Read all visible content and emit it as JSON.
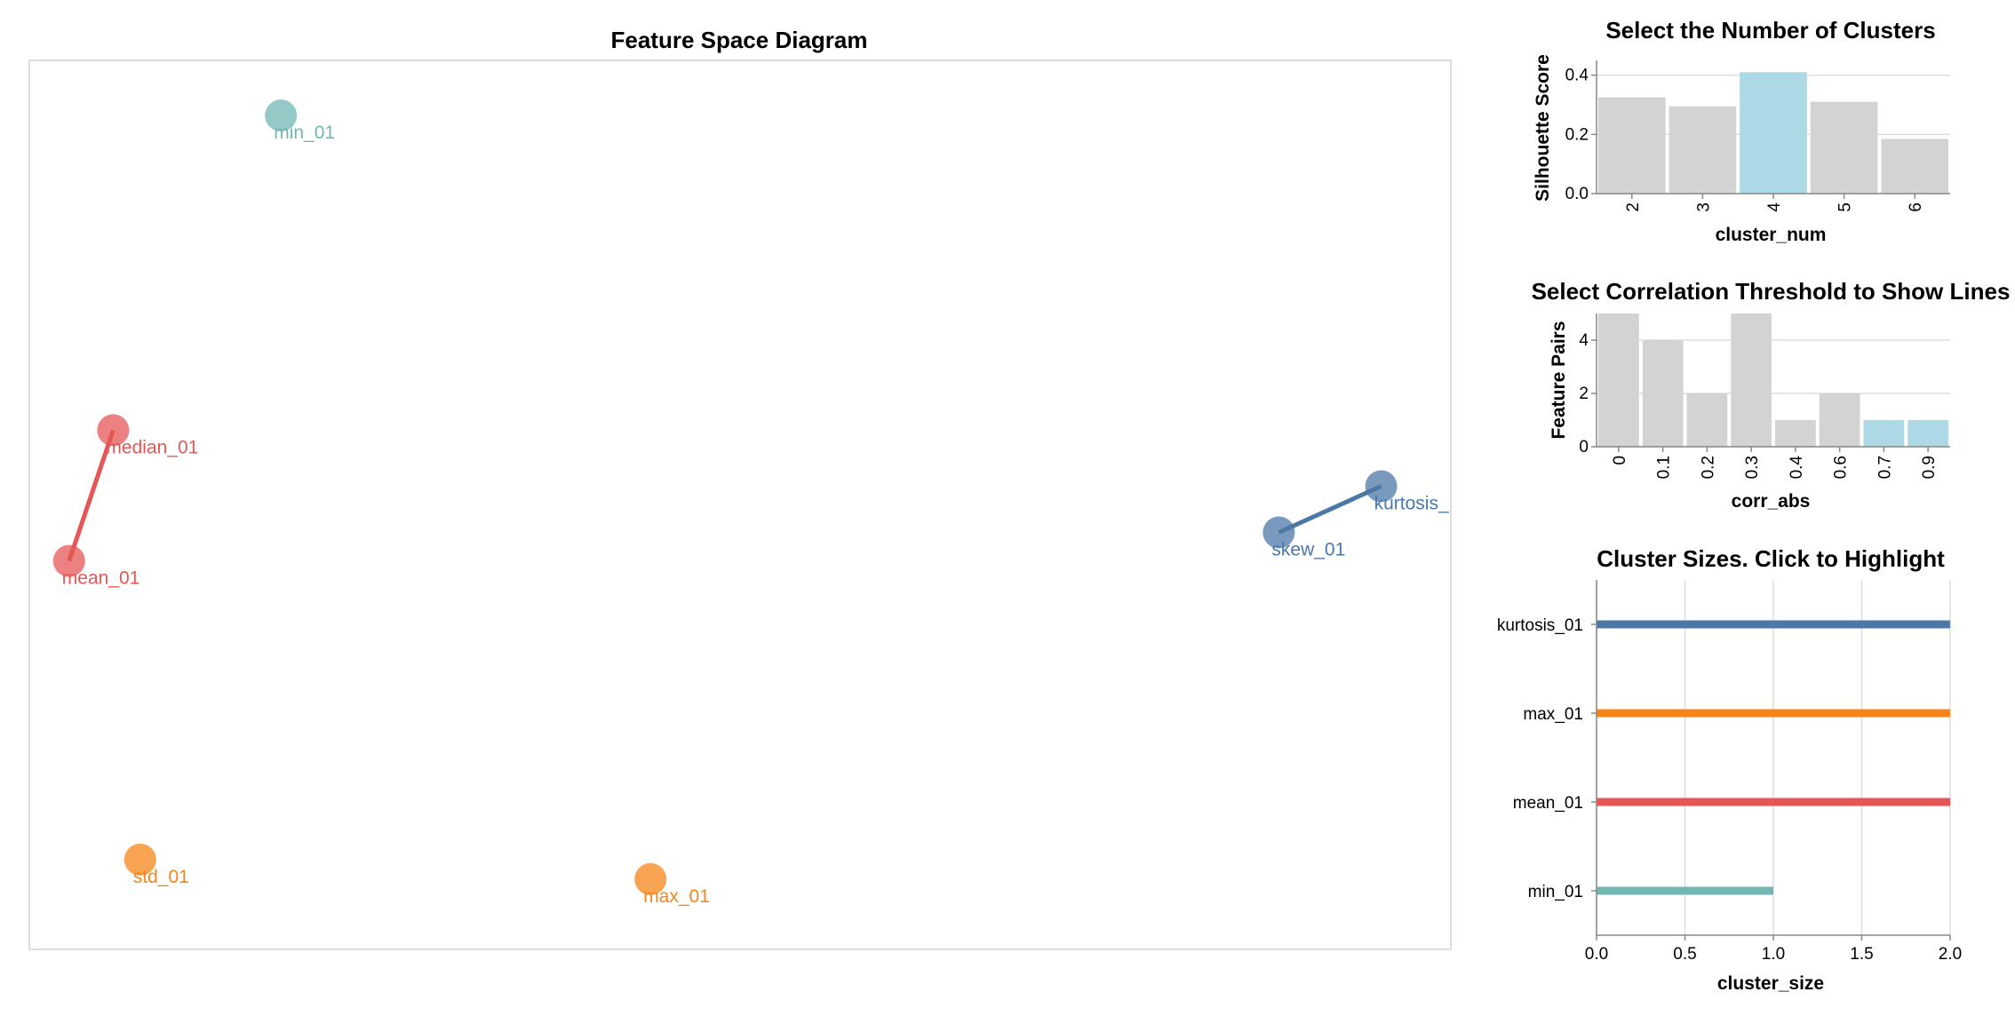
{
  "chart_data": [
    {
      "type": "scatter",
      "title": "Feature Space Diagram",
      "colors": {
        "kurtosis_01": "#4c78a8",
        "skew_01": "#4c78a8",
        "median_01": "#e45756",
        "mean_01": "#e45756",
        "min_01": "#72b7b2",
        "std_01": "#f58518",
        "max_01": "#f58518"
      },
      "nodes": [
        {
          "label": "min_01",
          "x": 0.177,
          "y": 0.938
        },
        {
          "label": "median_01",
          "x": 0.059,
          "y": 0.584
        },
        {
          "label": "mean_01",
          "x": 0.028,
          "y": 0.437
        },
        {
          "label": "kurtosis_",
          "x": 0.951,
          "y": 0.521
        },
        {
          "label": "skew_01",
          "x": 0.879,
          "y": 0.469
        },
        {
          "label": "std_01",
          "x": 0.078,
          "y": 0.101
        },
        {
          "label": "max_01",
          "x": 0.437,
          "y": 0.079
        }
      ],
      "links": [
        {
          "source": "median_01",
          "target": "mean_01",
          "color": "#e45756"
        },
        {
          "source": "kurtosis_",
          "target": "skew_01",
          "color": "#4c78a8"
        }
      ]
    },
    {
      "type": "bar",
      "title": "Select the Number of Clusters",
      "xlabel": "cluster_num",
      "ylabel": "Silhouette Score",
      "categories": [
        "2",
        "3",
        "4",
        "5",
        "6"
      ],
      "values": [
        0.325,
        0.295,
        0.41,
        0.31,
        0.185
      ],
      "selected": [
        "4"
      ],
      "yticks": [
        "0.0",
        "0.2",
        "0.4"
      ],
      "ylim": [
        0,
        0.45
      ],
      "bar_color": "#d3d3d3",
      "selected_color": "#add8e6"
    },
    {
      "type": "bar",
      "title": "Select Correlation Threshold to Show Lines",
      "xlabel": "corr_abs",
      "ylabel": "Feature Pairs",
      "categories": [
        "0",
        "0.1",
        "0.2",
        "0.3",
        "0.4",
        "0.6",
        "0.7",
        "0.9"
      ],
      "values": [
        5,
        4,
        2,
        5,
        1,
        2,
        1,
        1
      ],
      "selected": [
        "0.7",
        "0.9"
      ],
      "yticks": [
        "0",
        "2",
        "4"
      ],
      "ylim": [
        0,
        5
      ],
      "bar_color": "#d3d3d3",
      "selected_color": "#add8e6"
    },
    {
      "type": "bar",
      "orientation": "horizontal",
      "title": "Cluster Sizes. Click to Highlight",
      "xlabel": "cluster_size",
      "ylabel": "",
      "categories": [
        "kurtosis_01",
        "max_01",
        "mean_01",
        "min_01"
      ],
      "values": [
        2,
        2,
        2,
        1
      ],
      "colors": [
        "#4c78a8",
        "#f58518",
        "#e45756",
        "#72b7b2"
      ],
      "xticks": [
        "0.0",
        "0.5",
        "1.0",
        "1.5",
        "2.0"
      ],
      "xlim": [
        0,
        2
      ]
    }
  ]
}
